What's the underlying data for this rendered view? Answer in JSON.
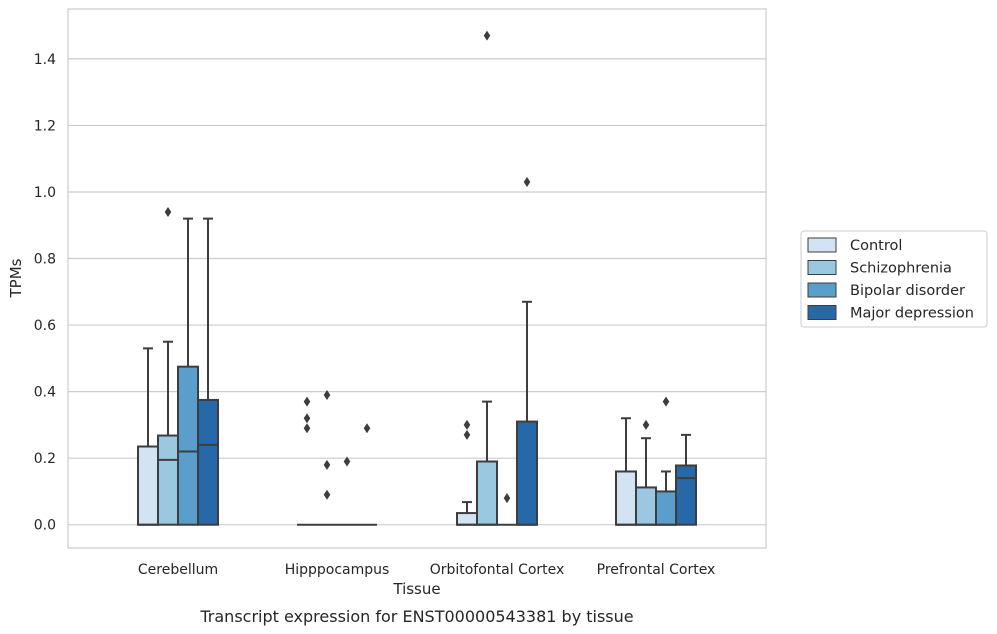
{
  "chart_data": {
    "type": "box",
    "xlabel": "Tissue",
    "ylabel": "TPMs",
    "caption": "Transcript expression for ENST00000543381 by tissue",
    "ylim": [
      -0.07,
      1.55
    ],
    "yticks": [
      0.0,
      0.2,
      0.4,
      0.6,
      0.8,
      1.0,
      1.2,
      1.4
    ],
    "ytick_labels": [
      "0.0",
      "0.2",
      "0.4",
      "0.6",
      "0.8",
      "1.0",
      "1.2",
      "1.4"
    ],
    "grid": "horizontal",
    "legend_position": "right, outside plot",
    "categories": [
      "Cerebellum",
      "Hipppocampus",
      "Orbitofontal Cortex",
      "Prefrontal Cortex"
    ],
    "series": [
      {
        "name": "Control",
        "color": "#d2e3f3",
        "boxes": [
          {
            "q1": 0.0,
            "median": 0.0,
            "q3": 0.235,
            "whisker_low": 0.0,
            "whisker_high": 0.53,
            "outliers": []
          },
          {
            "q1": 0.0,
            "median": 0.0,
            "q3": 0.0,
            "whisker_low": 0.0,
            "whisker_high": 0.0,
            "outliers": [
              0.29,
              0.32,
              0.37
            ]
          },
          {
            "q1": 0.0,
            "median": 0.0,
            "q3": 0.035,
            "whisker_low": 0.0,
            "whisker_high": 0.068,
            "outliers": [
              0.27,
              0.3
            ]
          },
          {
            "q1": 0.0,
            "median": 0.0,
            "q3": 0.16,
            "whisker_low": 0.0,
            "whisker_high": 0.32,
            "outliers": []
          }
        ]
      },
      {
        "name": "Schizophrenia",
        "color": "#9ac8e0",
        "boxes": [
          {
            "q1": 0.0,
            "median": 0.195,
            "q3": 0.268,
            "whisker_low": 0.0,
            "whisker_high": 0.55,
            "outliers": [
              0.94
            ]
          },
          {
            "q1": 0.0,
            "median": 0.0,
            "q3": 0.0,
            "whisker_low": 0.0,
            "whisker_high": 0.0,
            "outliers": [
              0.09,
              0.18,
              0.39
            ]
          },
          {
            "q1": 0.0,
            "median": 0.0,
            "q3": 0.19,
            "whisker_low": 0.0,
            "whisker_high": 0.37,
            "outliers": [
              1.47
            ]
          },
          {
            "q1": 0.0,
            "median": 0.0,
            "q3": 0.112,
            "whisker_low": 0.0,
            "whisker_high": 0.26,
            "outliers": [
              0.3
            ]
          }
        ]
      },
      {
        "name": "Bipolar disorder",
        "color": "#5a9fcc",
        "boxes": [
          {
            "q1": 0.0,
            "median": 0.22,
            "q3": 0.475,
            "whisker_low": 0.0,
            "whisker_high": 0.92,
            "outliers": []
          },
          {
            "q1": 0.0,
            "median": 0.0,
            "q3": 0.0,
            "whisker_low": 0.0,
            "whisker_high": 0.0,
            "outliers": [
              0.19
            ]
          },
          {
            "q1": 0.0,
            "median": 0.0,
            "q3": 0.0,
            "whisker_low": 0.0,
            "whisker_high": 0.0,
            "outliers": [
              0.08
            ]
          },
          {
            "q1": 0.0,
            "median": 0.0,
            "q3": 0.1,
            "whisker_low": 0.0,
            "whisker_high": 0.16,
            "outliers": [
              0.37
            ]
          }
        ]
      },
      {
        "name": "Major depression",
        "color": "#2769a8",
        "boxes": [
          {
            "q1": 0.0,
            "median": 0.24,
            "q3": 0.375,
            "whisker_low": 0.0,
            "whisker_high": 0.92,
            "outliers": []
          },
          {
            "q1": 0.0,
            "median": 0.0,
            "q3": 0.0,
            "whisker_low": 0.0,
            "whisker_high": 0.0,
            "outliers": [
              0.29
            ]
          },
          {
            "q1": 0.0,
            "median": 0.0,
            "q3": 0.31,
            "whisker_low": 0.0,
            "whisker_high": 0.67,
            "outliers": [
              1.03
            ]
          },
          {
            "q1": 0.0,
            "median": 0.14,
            "q3": 0.178,
            "whisker_low": 0.0,
            "whisker_high": 0.27,
            "outliers": []
          }
        ]
      }
    ]
  }
}
